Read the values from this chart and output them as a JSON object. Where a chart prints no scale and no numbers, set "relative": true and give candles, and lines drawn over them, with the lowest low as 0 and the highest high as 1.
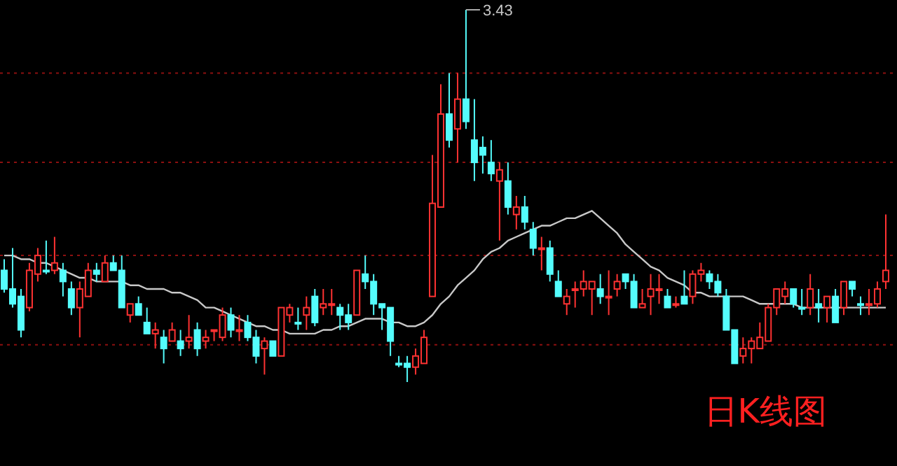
{
  "chart_data": {
    "type": "candlestick",
    "title": "日K线图",
    "relative": true,
    "categories": [
      null,
      null,
      null,
      null,
      null,
      null,
      null,
      null,
      null,
      null,
      null,
      null,
      null,
      null,
      null,
      null,
      null,
      null,
      null,
      null,
      null,
      null,
      null,
      null,
      null,
      null,
      null,
      null,
      null,
      null,
      null,
      null,
      null,
      null,
      null,
      null,
      null,
      null,
      null,
      null,
      null,
      null,
      null,
      null,
      null,
      null,
      null,
      null,
      null,
      null,
      null,
      null,
      null,
      null,
      null,
      null,
      null,
      null,
      null,
      null,
      null,
      null,
      null,
      null,
      null,
      null,
      null,
      null,
      null,
      null,
      null,
      null,
      null,
      null,
      null,
      null,
      null,
      null,
      null,
      null,
      null,
      null,
      null,
      null,
      null,
      null,
      null,
      null,
      null,
      null,
      null,
      null,
      null,
      null,
      null,
      null,
      null,
      null,
      null,
      null,
      null,
      null,
      null,
      null,
      null,
      null
    ],
    "ohlc": [
      [
        0.3,
        0.33,
        0.24,
        0.25
      ],
      [
        0.25,
        0.36,
        0.2,
        0.21
      ],
      [
        0.23,
        0.25,
        0.12,
        0.14
      ],
      [
        0.2,
        0.32,
        0.19,
        0.3
      ],
      [
        0.29,
        0.36,
        0.27,
        0.34
      ],
      [
        0.3,
        0.38,
        0.29,
        0.3
      ],
      [
        0.3,
        0.39,
        0.29,
        0.32
      ],
      [
        0.3,
        0.32,
        0.23,
        0.27
      ],
      [
        0.25,
        0.27,
        0.18,
        0.2
      ],
      [
        0.2,
        0.27,
        0.12,
        0.25
      ],
      [
        0.23,
        0.32,
        0.23,
        0.3
      ],
      [
        0.3,
        0.32,
        0.27,
        0.29
      ],
      [
        0.27,
        0.34,
        0.27,
        0.32
      ],
      [
        0.32,
        0.34,
        0.3,
        0.3
      ],
      [
        0.3,
        0.34,
        0.2,
        0.2
      ],
      [
        0.18,
        0.21,
        0.16,
        0.21
      ],
      [
        0.21,
        0.23,
        0.18,
        0.18
      ],
      [
        0.16,
        0.2,
        0.13,
        0.13
      ],
      [
        0.13,
        0.16,
        0.09,
        0.14
      ],
      [
        0.12,
        0.14,
        0.05,
        0.09
      ],
      [
        0.11,
        0.16,
        0.11,
        0.14
      ],
      [
        0.11,
        0.14,
        0.07,
        0.09
      ],
      [
        0.11,
        0.18,
        0.09,
        0.12
      ],
      [
        0.14,
        0.16,
        0.07,
        0.09
      ],
      [
        0.11,
        0.14,
        0.09,
        0.12
      ],
      [
        0.14,
        0.14,
        0.11,
        0.14
      ],
      [
        0.12,
        0.2,
        0.11,
        0.18
      ],
      [
        0.18,
        0.2,
        0.12,
        0.14
      ],
      [
        0.14,
        0.18,
        0.11,
        0.14
      ],
      [
        0.16,
        0.18,
        0.11,
        0.12
      ],
      [
        0.12,
        0.14,
        0.05,
        0.07
      ],
      [
        0.09,
        0.12,
        0.02,
        0.11
      ],
      [
        0.11,
        0.11,
        0.07,
        0.07
      ],
      [
        0.07,
        0.2,
        0.07,
        0.2
      ],
      [
        0.18,
        0.21,
        0.16,
        0.2
      ],
      [
        0.16,
        0.2,
        0.14,
        0.16
      ],
      [
        0.18,
        0.23,
        0.14,
        0.2
      ],
      [
        0.23,
        0.25,
        0.15,
        0.16
      ],
      [
        0.2,
        0.25,
        0.18,
        0.21
      ],
      [
        0.21,
        0.25,
        0.18,
        0.21
      ],
      [
        0.2,
        0.21,
        0.14,
        0.18
      ],
      [
        0.18,
        0.21,
        0.14,
        0.16
      ],
      [
        0.18,
        0.3,
        0.18,
        0.3
      ],
      [
        0.29,
        0.34,
        0.25,
        0.27
      ],
      [
        0.27,
        0.29,
        0.18,
        0.21
      ],
      [
        0.21,
        0.21,
        0.14,
        0.2
      ],
      [
        0.2,
        0.2,
        0.07,
        0.11
      ],
      [
        0.05,
        0.07,
        0.04,
        0.05
      ],
      [
        0.05,
        0.07,
        0.0,
        0.04
      ],
      [
        0.04,
        0.09,
        0.02,
        0.07
      ],
      [
        0.05,
        0.14,
        0.05,
        0.12
      ],
      [
        0.23,
        0.61,
        0.23,
        0.48
      ],
      [
        0.47,
        0.8,
        0.47,
        0.72
      ],
      [
        0.72,
        0.83,
        0.63,
        0.65
      ],
      [
        0.68,
        0.83,
        0.59,
        0.76
      ],
      [
        0.76,
        1.0,
        0.68,
        0.7
      ],
      [
        0.65,
        0.76,
        0.54,
        0.59
      ],
      [
        0.63,
        0.66,
        0.56,
        0.61
      ],
      [
        0.59,
        0.65,
        0.54,
        0.56
      ],
      [
        0.54,
        0.59,
        0.38,
        0.57
      ],
      [
        0.54,
        0.59,
        0.45,
        0.47
      ],
      [
        0.45,
        0.5,
        0.41,
        0.47
      ],
      [
        0.47,
        0.5,
        0.41,
        0.43
      ],
      [
        0.41,
        0.43,
        0.34,
        0.36
      ],
      [
        0.36,
        0.39,
        0.3,
        0.36
      ],
      [
        0.36,
        0.38,
        0.27,
        0.29
      ],
      [
        0.27,
        0.3,
        0.23,
        0.23
      ],
      [
        0.21,
        0.25,
        0.18,
        0.23
      ],
      [
        0.25,
        0.27,
        0.2,
        0.25
      ],
      [
        0.25,
        0.3,
        0.23,
        0.27
      ],
      [
        0.25,
        0.27,
        0.18,
        0.27
      ],
      [
        0.25,
        0.29,
        0.21,
        0.23
      ],
      [
        0.23,
        0.3,
        0.18,
        0.23
      ],
      [
        0.25,
        0.29,
        0.23,
        0.27
      ],
      [
        0.29,
        0.29,
        0.25,
        0.27
      ],
      [
        0.27,
        0.29,
        0.2,
        0.2
      ],
      [
        0.2,
        0.25,
        0.2,
        0.21
      ],
      [
        0.23,
        0.29,
        0.18,
        0.25
      ],
      [
        0.25,
        0.29,
        0.21,
        0.25
      ],
      [
        0.23,
        0.25,
        0.2,
        0.2
      ],
      [
        0.21,
        0.23,
        0.2,
        0.21
      ],
      [
        0.23,
        0.3,
        0.21,
        0.21
      ],
      [
        0.23,
        0.3,
        0.21,
        0.29
      ],
      [
        0.29,
        0.32,
        0.27,
        0.3
      ],
      [
        0.29,
        0.3,
        0.25,
        0.27
      ],
      [
        0.27,
        0.29,
        0.23,
        0.24
      ],
      [
        0.23,
        0.25,
        0.14,
        0.14
      ],
      [
        0.14,
        0.14,
        0.05,
        0.05
      ],
      [
        0.07,
        0.12,
        0.05,
        0.09
      ],
      [
        0.09,
        0.12,
        0.05,
        0.11
      ],
      [
        0.09,
        0.16,
        0.09,
        0.12
      ],
      [
        0.11,
        0.21,
        0.11,
        0.2
      ],
      [
        0.2,
        0.25,
        0.18,
        0.25
      ],
      [
        0.23,
        0.27,
        0.21,
        0.25
      ],
      [
        0.25,
        0.25,
        0.2,
        0.21
      ],
      [
        0.2,
        0.25,
        0.18,
        0.2
      ],
      [
        0.2,
        0.29,
        0.18,
        0.25
      ],
      [
        0.21,
        0.25,
        0.16,
        0.2
      ],
      [
        0.2,
        0.23,
        0.16,
        0.23
      ],
      [
        0.23,
        0.25,
        0.16,
        0.16
      ],
      [
        0.2,
        0.27,
        0.18,
        0.27
      ],
      [
        0.27,
        0.27,
        0.23,
        0.25
      ],
      [
        0.21,
        0.23,
        0.18,
        0.21
      ],
      [
        0.21,
        0.25,
        0.18,
        0.21
      ],
      [
        0.21,
        0.27,
        0.2,
        0.25
      ],
      [
        0.27,
        0.45,
        0.25,
        0.3
      ]
    ],
    "colors": [
      "#54fcfc",
      "#54fcfc",
      "#54fcfc",
      "#ff3232",
      "#ff3232",
      "#54fcfc",
      "#ff3232",
      "#54fcfc",
      "#54fcfc",
      "#ff3232",
      "#ff3232",
      "#54fcfc",
      "#ff3232",
      "#54fcfc",
      "#54fcfc",
      "#ff3232",
      "#54fcfc",
      "#54fcfc",
      "#ff3232",
      "#54fcfc",
      "#ff3232",
      "#54fcfc",
      "#ff3232",
      "#54fcfc",
      "#ff3232",
      "#ff3232",
      "#ff3232",
      "#54fcfc",
      "#ff3232",
      "#54fcfc",
      "#54fcfc",
      "#ff3232",
      "#54fcfc",
      "#ff3232",
      "#ff3232",
      "#54fcfc",
      "#ff3232",
      "#54fcfc",
      "#ff3232",
      "#ff3232",
      "#54fcfc",
      "#54fcfc",
      "#ff3232",
      "#54fcfc",
      "#54fcfc",
      "#54fcfc",
      "#54fcfc",
      "#54fcfc",
      "#54fcfc",
      "#ff3232",
      "#ff3232",
      "#ff3232",
      "#ff3232",
      "#54fcfc",
      "#ff3232",
      "#54fcfc",
      "#54fcfc",
      "#54fcfc",
      "#54fcfc",
      "#ff3232",
      "#54fcfc",
      "#ff3232",
      "#54fcfc",
      "#54fcfc",
      "#ff3232",
      "#54fcfc",
      "#54fcfc",
      "#ff3232",
      "#ff3232",
      "#ff3232",
      "#ff3232",
      "#54fcfc",
      "#ff3232",
      "#ff3232",
      "#54fcfc",
      "#54fcfc",
      "#ff3232",
      "#ff3232",
      "#ff3232",
      "#54fcfc",
      "#ff3232",
      "#54fcfc",
      "#ff3232",
      "#ff3232",
      "#54fcfc",
      "#54fcfc",
      "#54fcfc",
      "#54fcfc",
      "#ff3232",
      "#ff3232",
      "#ff3232",
      "#ff3232",
      "#ff3232",
      "#ff3232",
      "#54fcfc",
      "#54fcfc",
      "#ff3232",
      "#54fcfc",
      "#ff3232",
      "#54fcfc",
      "#ff3232",
      "#54fcfc",
      "#54fcfc",
      "#ff3232",
      "#ff3232",
      "#ff3232"
    ],
    "series": [
      {
        "type": "line",
        "color": "#c8c8c8",
        "values": [
          0.34,
          0.34,
          0.33,
          0.33,
          0.32,
          0.32,
          0.31,
          0.3,
          0.29,
          0.28,
          0.28,
          0.27,
          0.27,
          0.27,
          0.27,
          0.26,
          0.26,
          0.25,
          0.25,
          0.25,
          0.24,
          0.24,
          0.23,
          0.22,
          0.2,
          0.2,
          0.19,
          0.18,
          0.17,
          0.16,
          0.15,
          0.15,
          0.14,
          0.14,
          0.13,
          0.13,
          0.13,
          0.13,
          0.14,
          0.14,
          0.15,
          0.15,
          0.16,
          0.17,
          0.17,
          0.17,
          0.16,
          0.16,
          0.15,
          0.15,
          0.16,
          0.18,
          0.21,
          0.23,
          0.26,
          0.28,
          0.3,
          0.33,
          0.35,
          0.36,
          0.38,
          0.39,
          0.4,
          0.41,
          0.42,
          0.42,
          0.43,
          0.44,
          0.44,
          0.45,
          0.46,
          0.44,
          0.42,
          0.4,
          0.37,
          0.35,
          0.33,
          0.31,
          0.3,
          0.28,
          0.27,
          0.26,
          0.24,
          0.24,
          0.23,
          0.23,
          0.23,
          0.23,
          0.23,
          0.22,
          0.21,
          0.21,
          0.21,
          0.21,
          0.21,
          0.2,
          0.2,
          0.2,
          0.2,
          0.2,
          0.2,
          0.2,
          0.2,
          0.2,
          0.2,
          0.2
        ]
      }
    ],
    "ref_lines": [
      {
        "axis": "y",
        "value": 0.1,
        "color": "#8c1010",
        "line_style": "dotted"
      },
      {
        "axis": "y",
        "value": 0.34,
        "color": "#8c1010",
        "line_style": "dotted"
      },
      {
        "axis": "y",
        "value": 0.59,
        "color": "#8c1010",
        "line_style": "dotted"
      },
      {
        "axis": "y",
        "value": 0.83,
        "color": "#8c1010",
        "line_style": "dotted"
      }
    ],
    "annotations": [
      "3.43"
    ]
  }
}
